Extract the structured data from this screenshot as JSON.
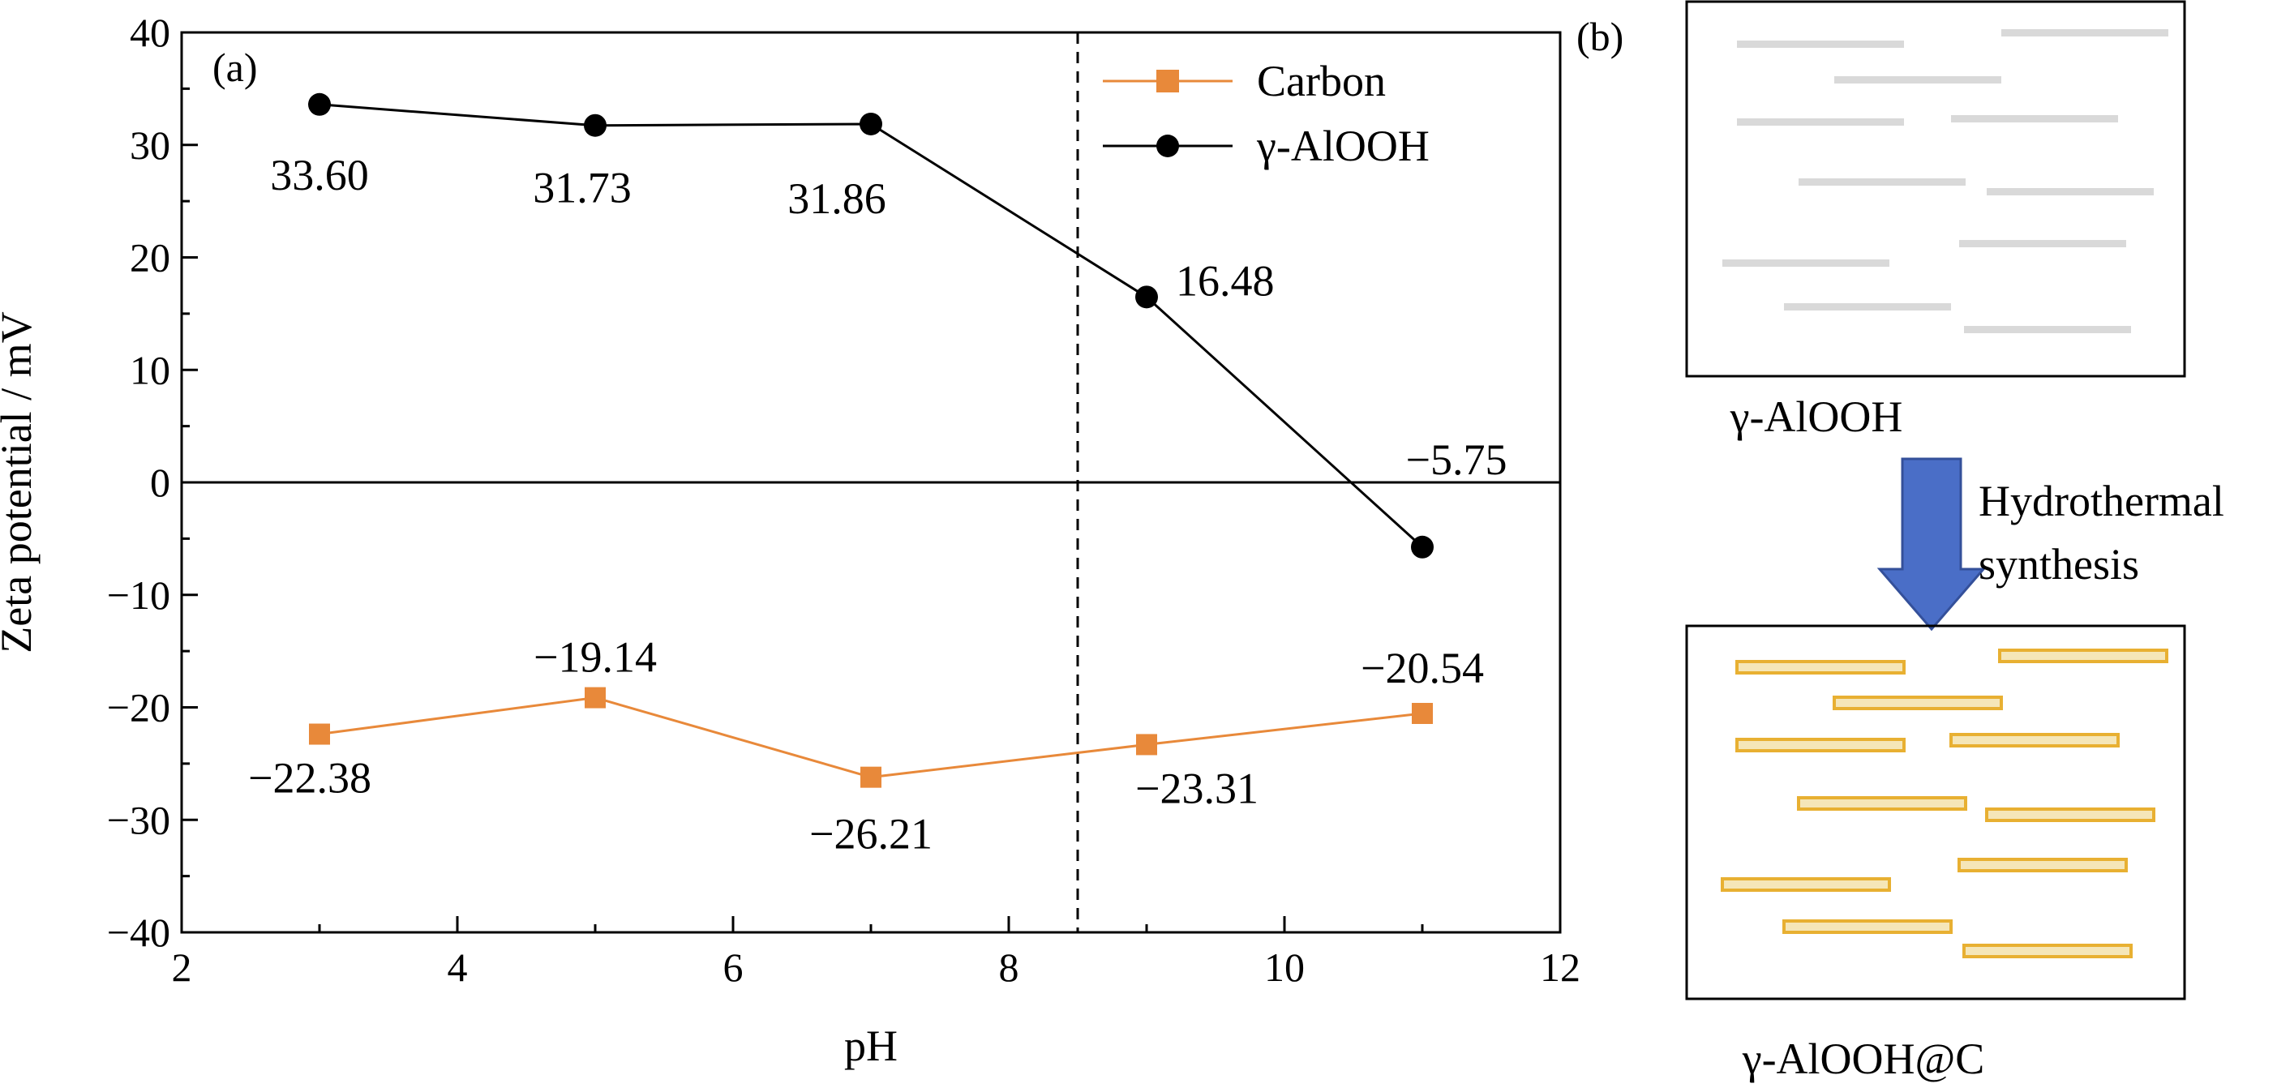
{
  "panel_a_label": "(a)",
  "panel_b_label": "(b)",
  "chart_data": {
    "type": "line",
    "xlabel": "pH",
    "ylabel": "Zeta potential / mV",
    "xlim": [
      2,
      12
    ],
    "ylim": [
      -40,
      40
    ],
    "x_ticks": [
      2,
      4,
      6,
      8,
      10,
      12
    ],
    "y_ticks": [
      40,
      30,
      20,
      10,
      0,
      -10,
      -20,
      -30,
      -40
    ],
    "y_tick_labels": [
      "40",
      "30",
      "20",
      "10",
      "0",
      "−10",
      "−20",
      "−30",
      "−40"
    ],
    "grid": false,
    "legend_position": "top-right",
    "zero_line": 0,
    "reference_line_x": 8.5,
    "x": [
      3,
      5,
      7,
      9,
      11
    ],
    "series": [
      {
        "name": "Carbon",
        "color": "#e8893a",
        "marker": "square",
        "values": [
          -22.38,
          -19.14,
          -26.21,
          -23.31,
          -20.54
        ],
        "labels": [
          "−22.38",
          "−19.14",
          "−26.21",
          "−23.31",
          "−20.54"
        ]
      },
      {
        "name": "γ-AlOOH",
        "color": "#000000",
        "marker": "circle",
        "values": [
          33.6,
          31.73,
          31.86,
          16.48,
          -5.75
        ],
        "labels": [
          "33.60",
          "31.73",
          "31.86",
          "16.48",
          "−5.75"
        ]
      }
    ]
  },
  "schematic": {
    "top_label": "γ-AlOOH",
    "arrow_label_line1": "Hydrothermal",
    "arrow_label_line2": "synthesis",
    "bottom_label": "γ-AlOOH@C",
    "arrow_color": "#4a6ec7",
    "rod_color_plain": "#d9d9d9",
    "rod_color_coated_fill": "#f5e6b8",
    "rod_color_coated_stroke": "#e8b032"
  }
}
